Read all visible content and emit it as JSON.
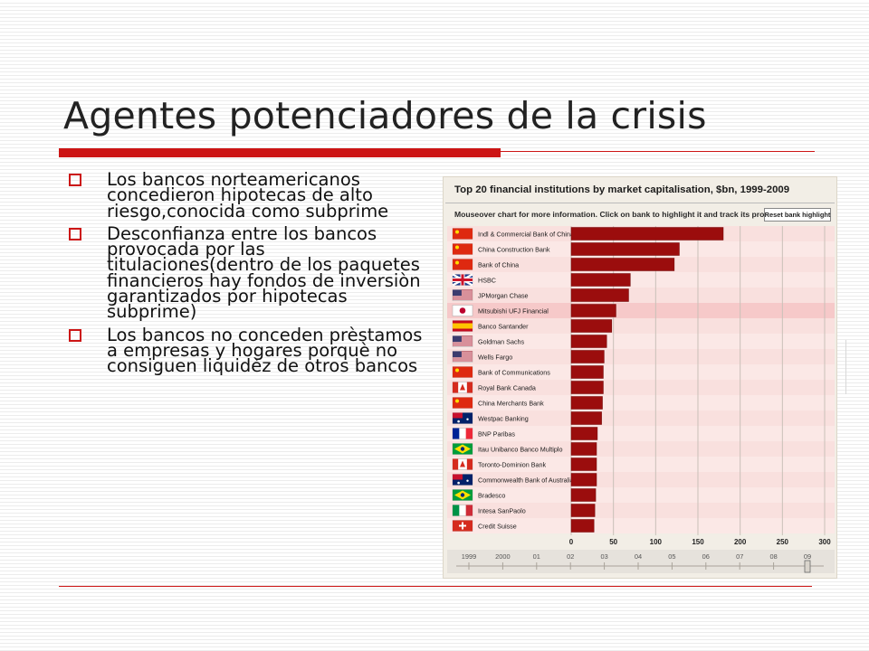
{
  "slide": {
    "title": "Agentes potenciadores de la crisis",
    "bullets": [
      "Los bancos norteamericanos concedieron hipotecas de alto riesgo,conocida como subprime",
      "Desconfianza entre los bancos provocada por las titulaciones(dentro de los paquetes financieros hay fondos de inversiòn garantizados por hipotecas subprime)",
      "Los bancos no conceden prèstamos a empresas y hogares porquè no consiguen liquidèz de otros bancos"
    ],
    "accent_color": "#cc1515"
  },
  "chart_panel": {
    "subtitle": "Mouseover chart for more information. Click on bank to highlight it and track its progress.",
    "reset_label": "Reset bank highlight",
    "timeline_labels": [
      "1999",
      "2000",
      "01",
      "02",
      "03",
      "04",
      "05",
      "06",
      "07",
      "08",
      "09"
    ]
  },
  "chart_data": {
    "type": "bar",
    "orientation": "horizontal",
    "title": "Top 20 financial institutions by market capitalisation, $bn, 1999-2009",
    "categories": [
      "Indl & Commercial Bank of China",
      "China Construction Bank",
      "Bank of China",
      "HSBC",
      "JPMorgan Chase",
      "Mitsubishi UFJ Financial",
      "Banco Santander",
      "Goldman Sachs",
      "Wells Fargo",
      "Bank of Communications",
      "Royal Bank Canada",
      "China Merchants Bank",
      "Westpac Banking",
      "BNP Paribas",
      "Itau Unibanco Banco Multiplo",
      "Toronto-Dominion Bank",
      "Commonwealth Bank of Australia",
      "Bradesco",
      "Intesa SanPaolo",
      "Credit Suisse"
    ],
    "flags": [
      "china",
      "china",
      "china",
      "uk",
      "usa",
      "japan",
      "spain",
      "usa",
      "usa",
      "china",
      "canada",
      "china",
      "australia",
      "france",
      "brazil",
      "canada",
      "australia",
      "brazil",
      "italy",
      "switzerland"
    ],
    "values": [
      180,
      128,
      122,
      70,
      68,
      53,
      48,
      42,
      39,
      38,
      38,
      37,
      36,
      31,
      30,
      30,
      30,
      29,
      28,
      27
    ],
    "highlighted": "Mitsubishi UFJ Financial",
    "xlim": [
      0,
      300
    ],
    "xticks": [
      0,
      50,
      100,
      150,
      200,
      250,
      300
    ],
    "bar_color": "#9b0d0d",
    "grid": true
  }
}
